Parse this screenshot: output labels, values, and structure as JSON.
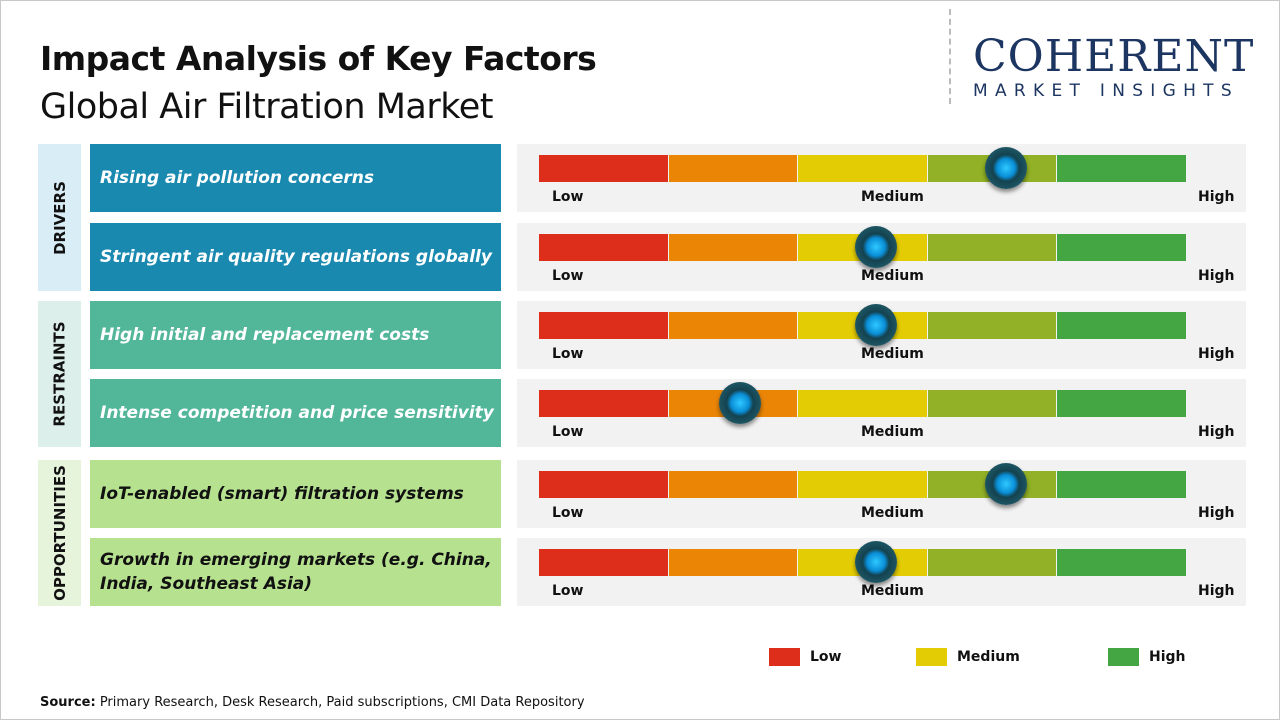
{
  "header": {
    "title": "Impact Analysis of Key Factors",
    "subtitle": "Global Air Filtration Market"
  },
  "logo": {
    "line1": "COHERENT",
    "line2": "MARKET INSIGHTS"
  },
  "chart_data": {
    "type": "gauge",
    "scale_labels": [
      "Low",
      "Medium",
      "High"
    ],
    "segment_colors": [
      "#dd2e1c",
      "#ea8506",
      "#e4cc04",
      "#92b126",
      "#44a543"
    ],
    "categories": [
      {
        "name": "DRIVERS",
        "color": "#1a89b0",
        "text_color": "#ffffff",
        "label_bg": "#d9edf6"
      },
      {
        "name": "RESTRAINTS",
        "color": "#52b699",
        "text_color": "#ffffff",
        "label_bg": "#ddefea"
      },
      {
        "name": "OPPORTUNITIES",
        "color": "#b6e290",
        "text_color": "#111111",
        "label_bg": "#e7f4dc"
      }
    ],
    "factors": [
      {
        "category": 0,
        "label": "Rising air pollution concerns",
        "impact": 0.72
      },
      {
        "category": 0,
        "label": "Stringent air quality regulations globally",
        "impact": 0.52
      },
      {
        "category": 1,
        "label": "High initial and replacement costs",
        "impact": 0.52
      },
      {
        "category": 1,
        "label": "Intense competition and price sensitivity",
        "impact": 0.31
      },
      {
        "category": 2,
        "label": "IoT-enabled (smart) filtration systems",
        "impact": 0.72
      },
      {
        "category": 2,
        "label": "Growth in emerging markets (e.g. China, India, Southeast Asia)",
        "impact": 0.52
      }
    ],
    "legend": [
      {
        "label": "Low",
        "color": "#dd2e1c"
      },
      {
        "label": "Medium",
        "color": "#e4cc04"
      },
      {
        "label": "High",
        "color": "#44a543"
      }
    ]
  },
  "footer": {
    "source_label": "Source:",
    "source_text": " Primary Research, Desk Research, Paid subscriptions, CMI Data Repository"
  }
}
